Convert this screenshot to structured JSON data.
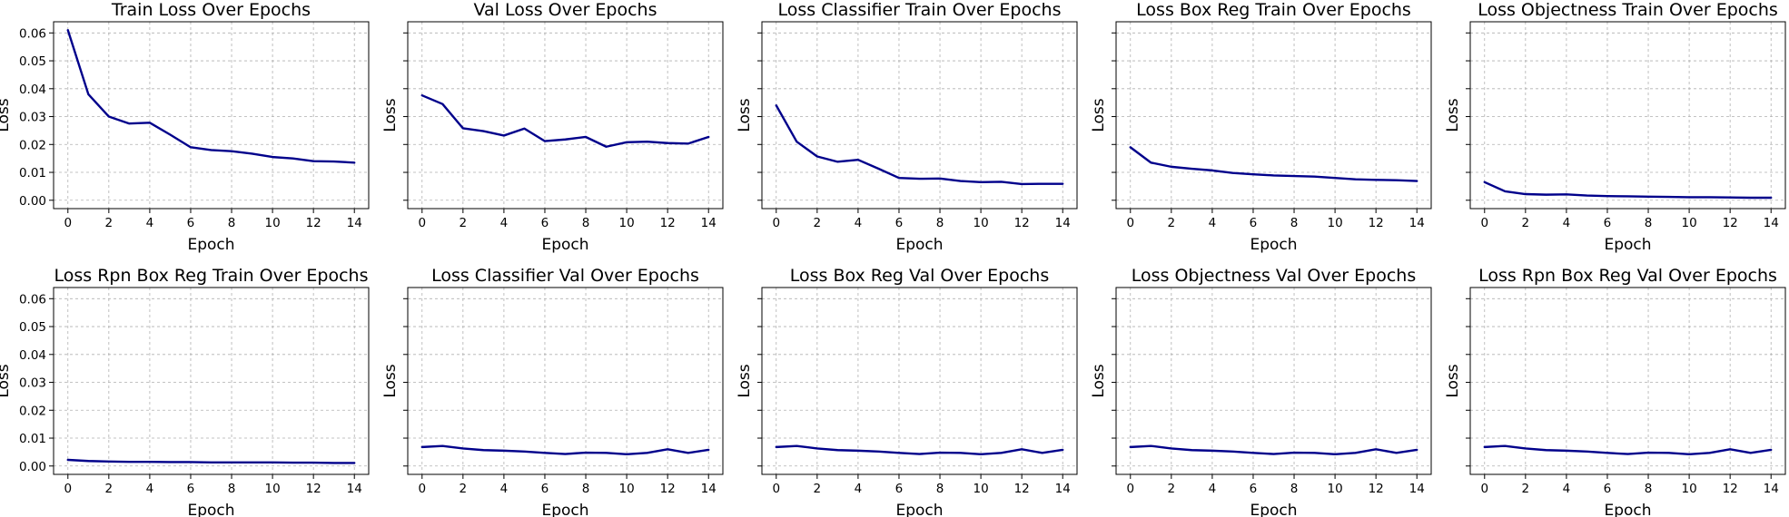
{
  "figure": {
    "line_color": "#00008b",
    "grid_color": "#b0b0b0"
  },
  "chart_data": [
    {
      "type": "line",
      "title": "Train Loss Over Epochs",
      "xlabel": "Epoch",
      "ylabel": "Loss",
      "x": [
        0,
        1,
        2,
        3,
        4,
        5,
        6,
        7,
        8,
        9,
        10,
        11,
        12,
        13,
        14
      ],
      "series": [
        {
          "values": [
            0.061,
            0.038,
            0.03,
            0.0275,
            0.0278,
            0.0235,
            0.019,
            0.018,
            0.0176,
            0.0167,
            0.0155,
            0.015,
            0.014,
            0.0139,
            0.0135
          ]
        }
      ],
      "xticks": [
        0,
        2,
        4,
        6,
        8,
        10,
        12,
        14
      ],
      "yticks": [
        0,
        0.01,
        0.02,
        0.03,
        0.04,
        0.05,
        0.06
      ],
      "ytick_labels": [
        "0.00",
        "0.01",
        "0.02",
        "0.03",
        "0.04",
        "0.05",
        "0.06"
      ],
      "xlim": [
        -0.7,
        14.7
      ],
      "ylim": [
        -0.003,
        0.064
      ],
      "grid": true
    },
    {
      "type": "line",
      "title": "Val Loss Over Epochs",
      "xlabel": "Epoch",
      "ylabel": "Loss",
      "x": [
        0,
        1,
        2,
        3,
        4,
        5,
        6,
        7,
        8,
        9,
        10,
        11,
        12,
        13,
        14
      ],
      "series": [
        {
          "values": [
            0.0376,
            0.0345,
            0.0258,
            0.0248,
            0.0232,
            0.0257,
            0.0212,
            0.0218,
            0.0227,
            0.0192,
            0.0208,
            0.021,
            0.0205,
            0.0203,
            0.0227
          ]
        }
      ],
      "xticks": [
        0,
        2,
        4,
        6,
        8,
        10,
        12,
        14
      ],
      "yticks": [
        0,
        0.01,
        0.02,
        0.03,
        0.04,
        0.05,
        0.06
      ],
      "ytick_labels": [],
      "xlim": [
        -0.7,
        14.7
      ],
      "ylim": [
        -0.003,
        0.064
      ],
      "grid": true
    },
    {
      "type": "line",
      "title": "Loss Classifier Train Over Epochs",
      "xlabel": "Epoch",
      "ylabel": "Loss",
      "x": [
        0,
        1,
        2,
        3,
        4,
        5,
        6,
        7,
        8,
        9,
        10,
        11,
        12,
        13,
        14
      ],
      "series": [
        {
          "values": [
            0.034,
            0.021,
            0.0157,
            0.0138,
            0.0145,
            0.0113,
            0.008,
            0.0077,
            0.0078,
            0.0069,
            0.0065,
            0.0066,
            0.0058,
            0.0059,
            0.0059
          ]
        }
      ],
      "xticks": [
        0,
        2,
        4,
        6,
        8,
        10,
        12,
        14
      ],
      "yticks": [
        0,
        0.01,
        0.02,
        0.03,
        0.04,
        0.05,
        0.06
      ],
      "ytick_labels": [],
      "xlim": [
        -0.7,
        14.7
      ],
      "ylim": [
        -0.003,
        0.064
      ],
      "grid": true
    },
    {
      "type": "line",
      "title": "Loss Box Reg Train Over Epochs",
      "xlabel": "Epoch",
      "ylabel": "Loss",
      "x": [
        0,
        1,
        2,
        3,
        4,
        5,
        6,
        7,
        8,
        9,
        10,
        11,
        12,
        13,
        14
      ],
      "series": [
        {
          "values": [
            0.019,
            0.0135,
            0.012,
            0.0113,
            0.0107,
            0.0098,
            0.0093,
            0.0089,
            0.0087,
            0.0085,
            0.008,
            0.0075,
            0.0073,
            0.0072,
            0.0069
          ]
        }
      ],
      "xticks": [
        0,
        2,
        4,
        6,
        8,
        10,
        12,
        14
      ],
      "yticks": [
        0,
        0.01,
        0.02,
        0.03,
        0.04,
        0.05,
        0.06
      ],
      "ytick_labels": [],
      "xlim": [
        -0.7,
        14.7
      ],
      "ylim": [
        -0.003,
        0.064
      ],
      "grid": true
    },
    {
      "type": "line",
      "title": "Loss Objectness Train Over Epochs",
      "xlabel": "Epoch",
      "ylabel": "Loss",
      "x": [
        0,
        1,
        2,
        3,
        4,
        5,
        6,
        7,
        8,
        9,
        10,
        11,
        12,
        13,
        14
      ],
      "series": [
        {
          "values": [
            0.0065,
            0.0032,
            0.0022,
            0.002,
            0.0021,
            0.0017,
            0.0015,
            0.0014,
            0.0013,
            0.0012,
            0.0011,
            0.0011,
            0.001,
            0.0009,
            0.0009
          ]
        }
      ],
      "xticks": [
        0,
        2,
        4,
        6,
        8,
        10,
        12,
        14
      ],
      "yticks": [
        0,
        0.01,
        0.02,
        0.03,
        0.04,
        0.05,
        0.06
      ],
      "ytick_labels": [],
      "xlim": [
        -0.7,
        14.7
      ],
      "ylim": [
        -0.003,
        0.064
      ],
      "grid": true
    },
    {
      "type": "line",
      "title": "Loss Rpn Box Reg Train Over Epochs",
      "xlabel": "Epoch",
      "ylabel": "Loss",
      "x": [
        0,
        1,
        2,
        3,
        4,
        5,
        6,
        7,
        8,
        9,
        10,
        11,
        12,
        13,
        14
      ],
      "series": [
        {
          "values": [
            0.0022,
            0.0018,
            0.0016,
            0.0015,
            0.0015,
            0.0014,
            0.0014,
            0.0013,
            0.0013,
            0.0013,
            0.0013,
            0.0012,
            0.0012,
            0.0011,
            0.0011
          ]
        }
      ],
      "xticks": [
        0,
        2,
        4,
        6,
        8,
        10,
        12,
        14
      ],
      "yticks": [
        0,
        0.01,
        0.02,
        0.03,
        0.04,
        0.05,
        0.06
      ],
      "ytick_labels": [
        "0.00",
        "0.01",
        "0.02",
        "0.03",
        "0.04",
        "0.05",
        "0.06"
      ],
      "xlim": [
        -0.7,
        14.7
      ],
      "ylim": [
        -0.003,
        0.064
      ],
      "grid": true
    },
    {
      "type": "line",
      "title": "Loss Classifier Val Over Epochs",
      "xlabel": "Epoch",
      "ylabel": "Loss",
      "x": [
        0,
        1,
        2,
        3,
        4,
        5,
        6,
        7,
        8,
        9,
        10,
        11,
        12,
        13,
        14
      ],
      "series": [
        {
          "values": [
            0.0068,
            0.0072,
            0.0063,
            0.0057,
            0.0055,
            0.0052,
            0.0047,
            0.0043,
            0.0048,
            0.0047,
            0.0042,
            0.0047,
            0.006,
            0.0047,
            0.0058
          ]
        }
      ],
      "xticks": [
        0,
        2,
        4,
        6,
        8,
        10,
        12,
        14
      ],
      "yticks": [
        0,
        0.01,
        0.02,
        0.03,
        0.04,
        0.05,
        0.06
      ],
      "ytick_labels": [],
      "xlim": [
        -0.7,
        14.7
      ],
      "ylim": [
        -0.003,
        0.064
      ],
      "grid": true
    },
    {
      "type": "line",
      "title": "Loss Box Reg Val Over Epochs",
      "xlabel": "Epoch",
      "ylabel": "Loss",
      "x": [
        0,
        1,
        2,
        3,
        4,
        5,
        6,
        7,
        8,
        9,
        10,
        11,
        12,
        13,
        14
      ],
      "series": [
        {
          "values": [
            0.0068,
            0.0072,
            0.0063,
            0.0057,
            0.0055,
            0.0052,
            0.0047,
            0.0043,
            0.0048,
            0.0047,
            0.0042,
            0.0047,
            0.006,
            0.0047,
            0.0058
          ]
        }
      ],
      "xticks": [
        0,
        2,
        4,
        6,
        8,
        10,
        12,
        14
      ],
      "yticks": [
        0,
        0.01,
        0.02,
        0.03,
        0.04,
        0.05,
        0.06
      ],
      "ytick_labels": [],
      "xlim": [
        -0.7,
        14.7
      ],
      "ylim": [
        -0.003,
        0.064
      ],
      "grid": true
    },
    {
      "type": "line",
      "title": "Loss Objectness Val Over Epochs",
      "xlabel": "Epoch",
      "ylabel": "Loss",
      "x": [
        0,
        1,
        2,
        3,
        4,
        5,
        6,
        7,
        8,
        9,
        10,
        11,
        12,
        13,
        14
      ],
      "series": [
        {
          "values": [
            0.0068,
            0.0072,
            0.0063,
            0.0057,
            0.0055,
            0.0052,
            0.0047,
            0.0043,
            0.0048,
            0.0047,
            0.0042,
            0.0047,
            0.006,
            0.0047,
            0.0058
          ]
        }
      ],
      "xticks": [
        0,
        2,
        4,
        6,
        8,
        10,
        12,
        14
      ],
      "yticks": [
        0,
        0.01,
        0.02,
        0.03,
        0.04,
        0.05,
        0.06
      ],
      "ytick_labels": [],
      "xlim": [
        -0.7,
        14.7
      ],
      "ylim": [
        -0.003,
        0.064
      ],
      "grid": true
    },
    {
      "type": "line",
      "title": "Loss Rpn Box Reg Val Over Epochs",
      "xlabel": "Epoch",
      "ylabel": "Loss",
      "x": [
        0,
        1,
        2,
        3,
        4,
        5,
        6,
        7,
        8,
        9,
        10,
        11,
        12,
        13,
        14
      ],
      "series": [
        {
          "values": [
            0.0068,
            0.0072,
            0.0063,
            0.0057,
            0.0055,
            0.0052,
            0.0047,
            0.0043,
            0.0048,
            0.0047,
            0.0042,
            0.0047,
            0.006,
            0.0047,
            0.0058
          ]
        }
      ],
      "xticks": [
        0,
        2,
        4,
        6,
        8,
        10,
        12,
        14
      ],
      "yticks": [
        0,
        0.01,
        0.02,
        0.03,
        0.04,
        0.05,
        0.06
      ],
      "ytick_labels": [],
      "xlim": [
        -0.7,
        14.7
      ],
      "ylim": [
        -0.003,
        0.064
      ],
      "grid": true
    }
  ]
}
